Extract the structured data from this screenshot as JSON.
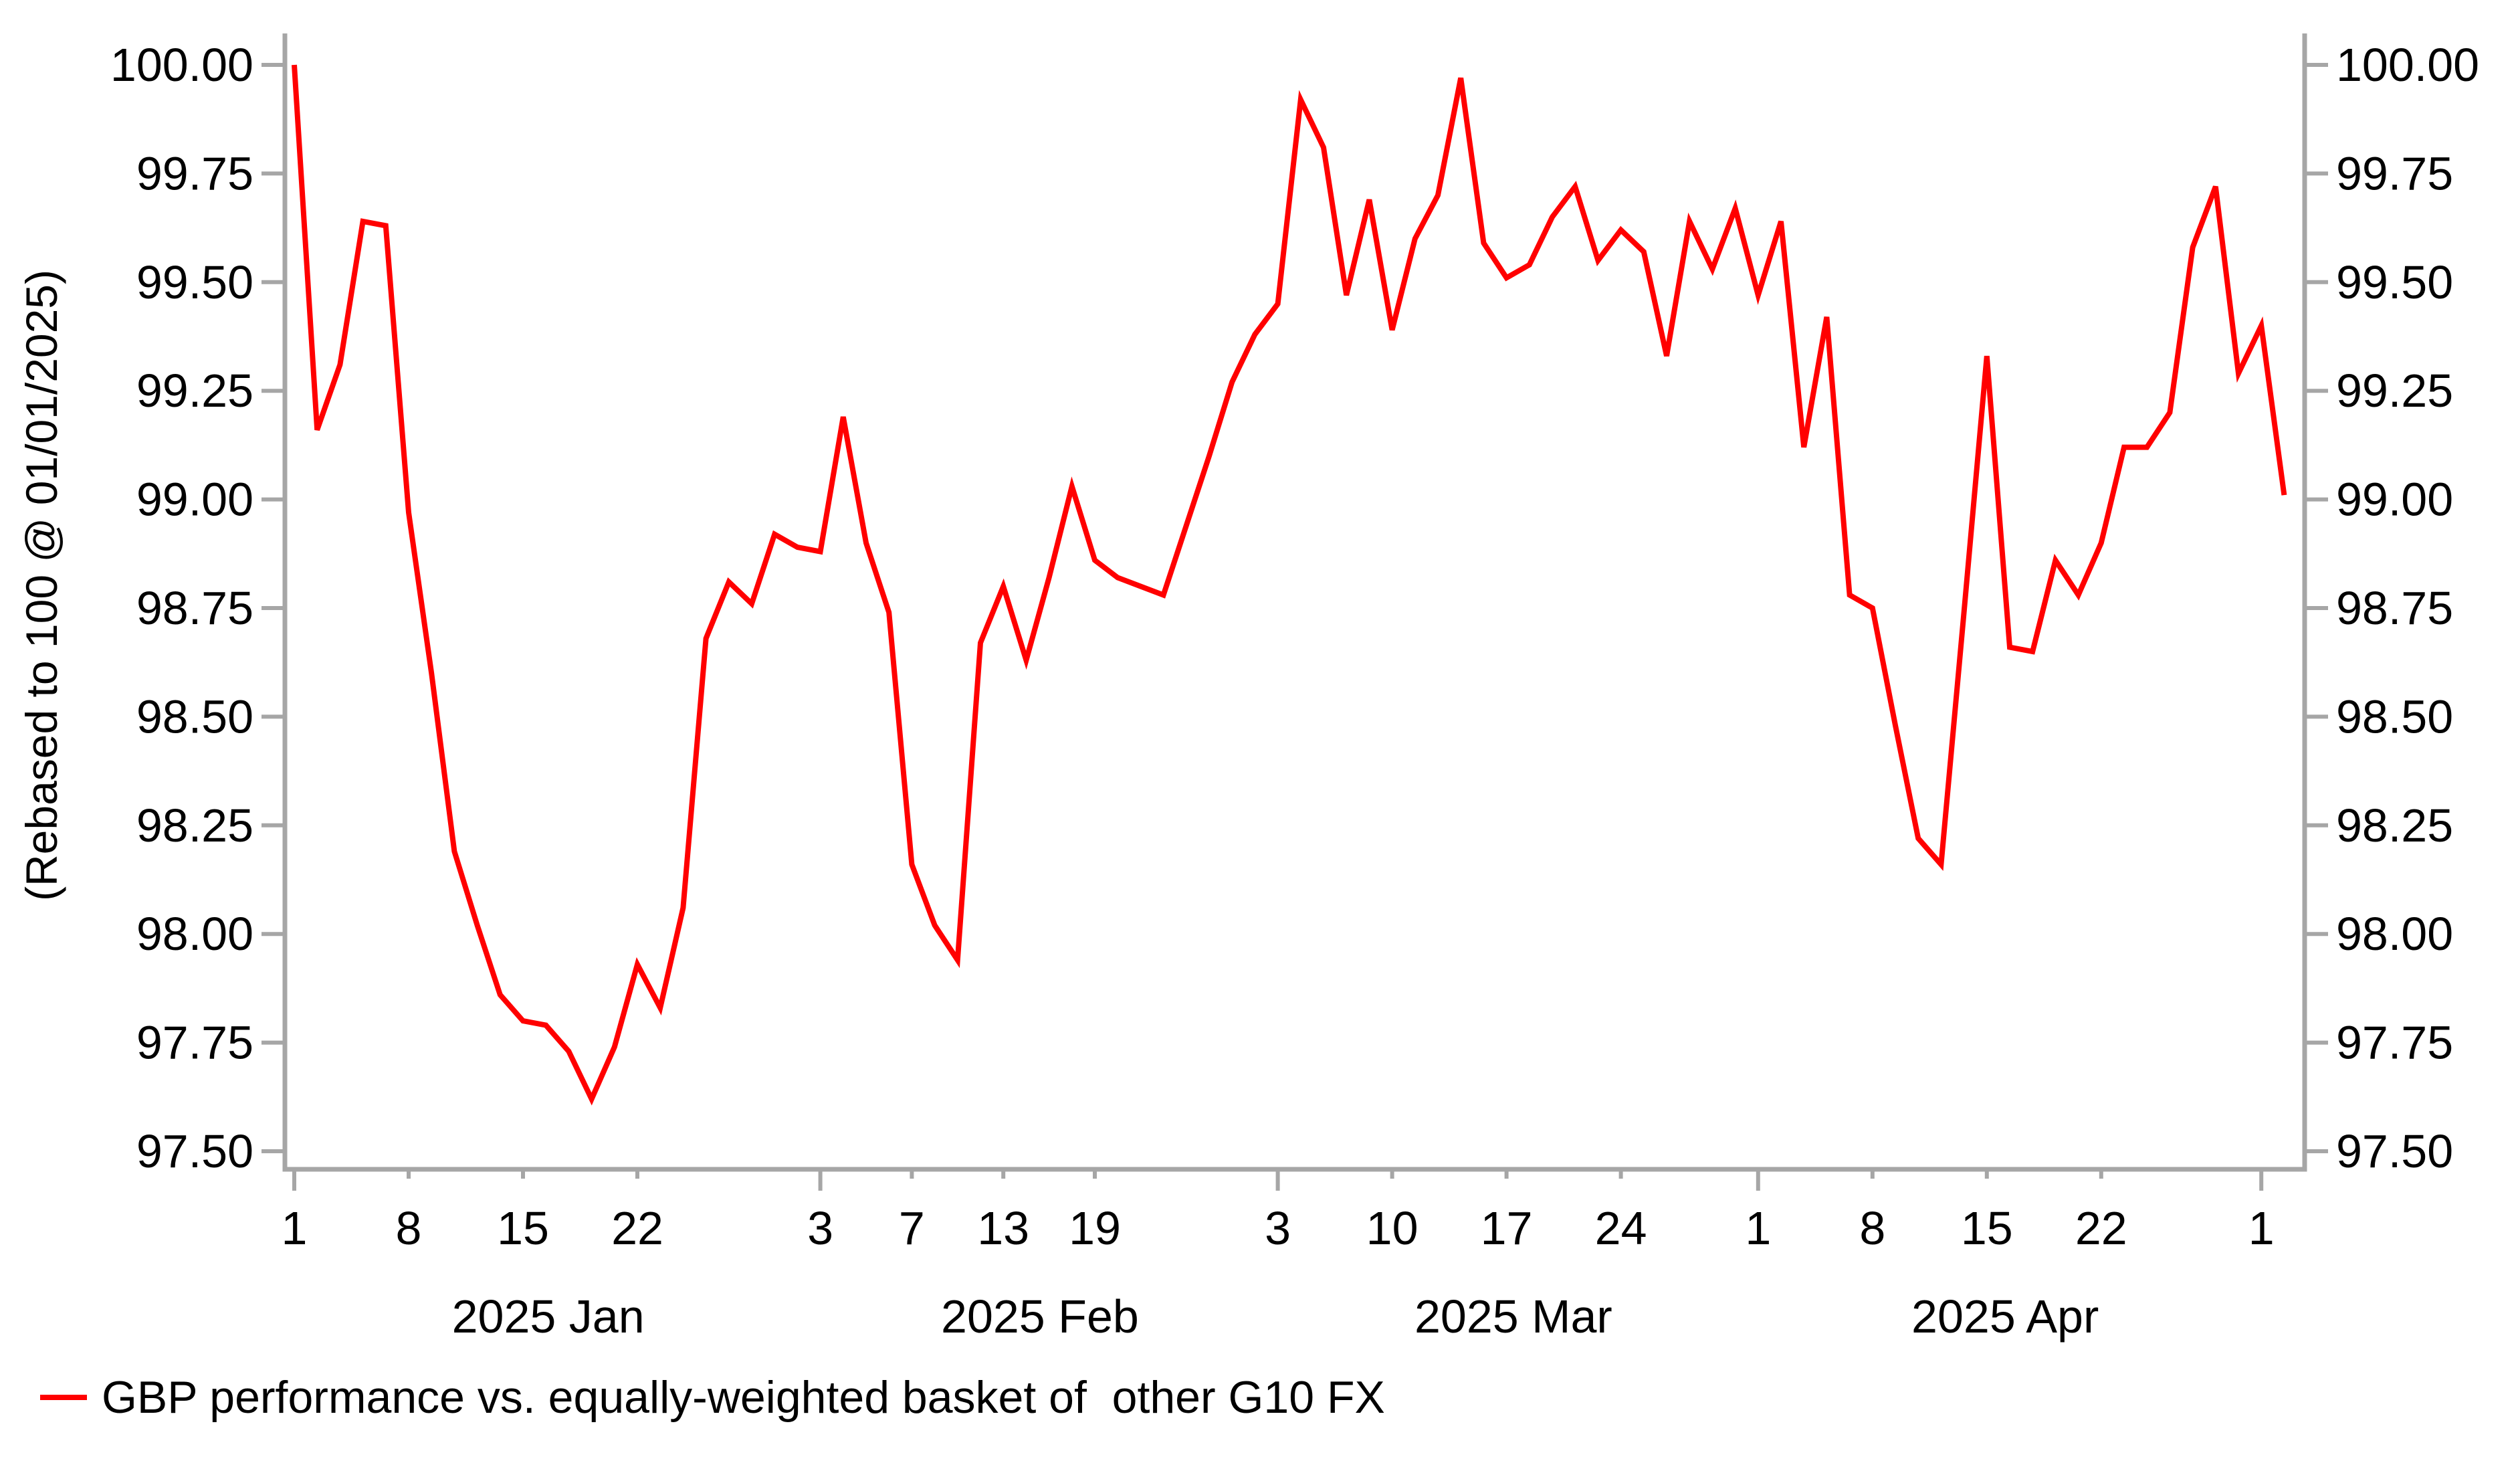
{
  "chart_data": {
    "type": "line",
    "title": "",
    "xlabel": "",
    "ylabel": "(Rebased to 100 @ 01/01/2025)",
    "ylim": [
      97.5,
      100.0
    ],
    "y_tick_step": 0.25,
    "y_ticks": [
      100.0,
      99.75,
      99.5,
      99.25,
      99.0,
      98.75,
      98.5,
      98.25,
      98.0,
      97.75,
      97.5
    ],
    "y_axis_sides": [
      "left",
      "right"
    ],
    "grid": false,
    "legend_position": "bottom-left",
    "axis_color": "#a6a6a6",
    "text_color": "#000000",
    "x_dates": [
      "2025-01-01",
      "2025-01-02",
      "2025-01-03",
      "2025-01-06",
      "2025-01-07",
      "2025-01-08",
      "2025-01-09",
      "2025-01-10",
      "2025-01-13",
      "2025-01-14",
      "2025-01-15",
      "2025-01-16",
      "2025-01-17",
      "2025-01-20",
      "2025-01-21",
      "2025-01-22",
      "2025-01-23",
      "2025-01-24",
      "2025-01-27",
      "2025-01-28",
      "2025-01-29",
      "2025-01-30",
      "2025-01-31",
      "2025-02-03",
      "2025-02-04",
      "2025-02-05",
      "2025-02-06",
      "2025-02-07",
      "2025-02-10",
      "2025-02-11",
      "2025-02-12",
      "2025-02-13",
      "2025-02-14",
      "2025-02-17",
      "2025-02-18",
      "2025-02-19",
      "2025-02-20",
      "2025-02-21",
      "2025-02-24",
      "2025-02-25",
      "2025-02-26",
      "2025-02-27",
      "2025-02-28",
      "2025-03-03",
      "2025-03-04",
      "2025-03-05",
      "2025-03-06",
      "2025-03-07",
      "2025-03-10",
      "2025-03-11",
      "2025-03-12",
      "2025-03-13",
      "2025-03-14",
      "2025-03-17",
      "2025-03-18",
      "2025-03-19",
      "2025-03-20",
      "2025-03-21",
      "2025-03-24",
      "2025-03-25",
      "2025-03-26",
      "2025-03-27",
      "2025-03-28",
      "2025-03-31",
      "2025-04-01",
      "2025-04-02",
      "2025-04-03",
      "2025-04-04",
      "2025-04-07",
      "2025-04-08",
      "2025-04-09",
      "2025-04-10",
      "2025-04-11",
      "2025-04-14",
      "2025-04-15",
      "2025-04-16",
      "2025-04-17",
      "2025-04-18",
      "2025-04-21",
      "2025-04-22",
      "2025-04-23",
      "2025-04-24",
      "2025-04-25",
      "2025-04-28",
      "2025-04-29",
      "2025-04-30",
      "2025-05-01",
      "2025-05-02"
    ],
    "series": [
      {
        "name": "GBP performance vs. equally-weighted basket of  other G10 FX",
        "color": "#ff0000",
        "values": [
          100.0,
          99.16,
          99.31,
          99.64,
          99.63,
          98.97,
          98.6,
          98.19,
          98.02,
          97.86,
          97.8,
          97.79,
          97.73,
          97.62,
          97.74,
          97.93,
          97.83,
          98.06,
          98.68,
          98.81,
          98.76,
          98.92,
          98.89,
          98.88,
          99.19,
          98.9,
          98.74,
          98.16,
          98.02,
          97.94,
          98.67,
          98.8,
          98.63,
          98.82,
          99.03,
          98.86,
          98.82,
          98.8,
          98.78,
          98.94,
          99.1,
          99.27,
          99.38,
          99.45,
          99.92,
          99.81,
          99.47,
          99.69,
          99.39,
          99.6,
          99.7,
          99.97,
          99.59,
          99.51,
          99.54,
          99.65,
          99.72,
          99.55,
          99.62,
          99.57,
          99.33,
          99.64,
          99.53,
          99.67,
          99.47,
          99.64,
          99.12,
          99.42,
          98.78,
          98.75,
          98.48,
          98.22,
          98.16,
          98.74,
          99.33,
          98.66,
          98.65,
          98.86,
          98.78,
          98.9,
          99.12,
          99.12,
          99.2,
          99.58,
          99.72,
          99.29,
          99.4,
          99.01
        ]
      }
    ],
    "x_ticks": [
      {
        "index": 0,
        "label": "1",
        "major": true
      },
      {
        "index": 5,
        "label": "8",
        "major": false
      },
      {
        "index": 10,
        "label": "15",
        "major": false
      },
      {
        "index": 15,
        "label": "22",
        "major": false
      },
      {
        "index": 23,
        "label": "3",
        "major": true
      },
      {
        "index": 27,
        "label": "7",
        "major": false
      },
      {
        "index": 31,
        "label": "13",
        "major": false
      },
      {
        "index": 35,
        "label": "19",
        "major": false
      },
      {
        "index": 43,
        "label": "3",
        "major": true
      },
      {
        "index": 48,
        "label": "10",
        "major": false
      },
      {
        "index": 53,
        "label": "17",
        "major": false
      },
      {
        "index": 58,
        "label": "24",
        "major": false
      },
      {
        "index": 64,
        "label": "1",
        "major": true
      },
      {
        "index": 69,
        "label": "8",
        "major": false
      },
      {
        "index": 74,
        "label": "15",
        "major": false
      },
      {
        "index": 79,
        "label": "22",
        "major": false
      },
      {
        "index": 86,
        "label": "1",
        "major": true
      }
    ],
    "month_labels": [
      {
        "label": "2025 Jan",
        "center_index": 11.1
      },
      {
        "label": "2025 Feb",
        "center_index": 32.6
      },
      {
        "label": "2025 Mar",
        "center_index": 53.3
      },
      {
        "label": "2025 Apr",
        "center_index": 74.8
      }
    ]
  }
}
